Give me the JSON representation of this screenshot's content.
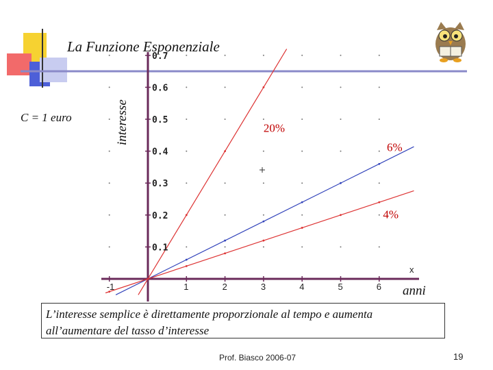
{
  "slide": {
    "title": "La Funzione  Esponenziale",
    "capital_label": "C = 1  euro",
    "caption": "L’interesse semplice è direttamente proporzionale al tempo e aumenta all’aumentare del tasso d’interesse",
    "footer": "Prof. Biasco  2006-07",
    "page_number": "19"
  },
  "colors": {
    "blue": "#3344bb",
    "red": "#dd3333",
    "axis": "#6a2a5a",
    "header_rule": "#8a8ac8",
    "deco_yellow": "#f6d231",
    "deco_red": "#f26a6a",
    "deco_blue": "#4d5fd8"
  },
  "chart_data": {
    "type": "line",
    "title": "La Funzione  Esponenziale",
    "xlabel": "anni",
    "ylabel": "interesse",
    "x_axis_mark": "x",
    "x_ticks": [
      "-1",
      "1",
      "2",
      "3",
      "4",
      "5",
      "6"
    ],
    "y_ticks": [
      "0.1",
      "0.2",
      "0.3",
      "0.4",
      "0.5",
      "0.6",
      "0.7"
    ],
    "xlim": [
      -1.1,
      6.9
    ],
    "ylim": [
      -0.05,
      0.72
    ],
    "grid": "dotted",
    "series": [
      {
        "name": "20%",
        "rate": 0.2,
        "color": "red",
        "label_x": 3,
        "label_y": 0.46
      },
      {
        "name": "6%",
        "rate": 0.06,
        "color": "blue",
        "label_x": 6.2,
        "label_y": 0.4
      },
      {
        "name": "4%",
        "rate": 0.04,
        "color": "red",
        "label_x": 6.1,
        "label_y": 0.19
      }
    ]
  }
}
